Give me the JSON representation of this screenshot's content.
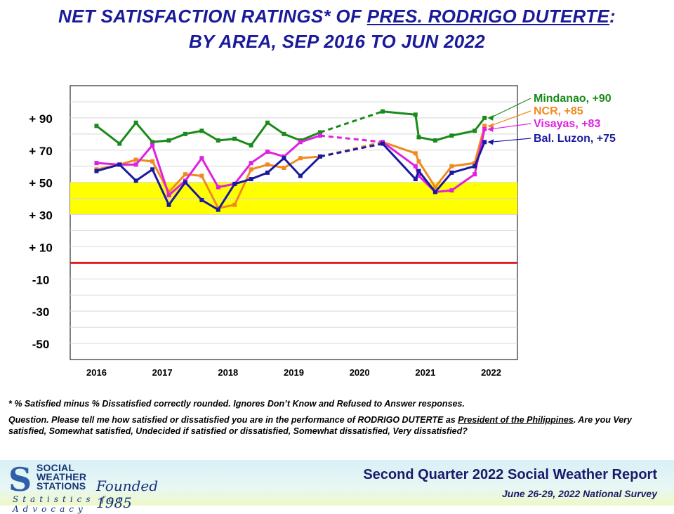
{
  "title": {
    "line1_prefix": "NET SATISFACTION  RATINGS* OF ",
    "line1_underlined": "PRES. RODRIGO DUTERTE",
    "line1_suffix": ":",
    "line2": "BY AREA,  SEP 2016 TO JUN 2022"
  },
  "chart_data": {
    "type": "line",
    "ylim": [
      -60,
      110
    ],
    "yticks": [
      90,
      70,
      50,
      30,
      10,
      -10,
      -30,
      -50
    ],
    "ytick_labels": [
      "+ 90",
      "+ 70",
      "+ 50",
      "+ 30",
      "+ 10",
      "-10",
      "-30",
      "-50"
    ],
    "xlim": [
      2015.6,
      2022.4
    ],
    "xticks": [
      2016,
      2017,
      2018,
      2019,
      2020,
      2021,
      2022
    ],
    "xtick_labels": [
      "2016",
      "2017",
      "2018",
      "2019",
      "2020",
      "2021",
      "2022"
    ],
    "band": {
      "from": 30,
      "to": 50,
      "color": "#ffff00"
    },
    "zero_line": {
      "value": 0,
      "color": "#e02020"
    },
    "dashed_segments": [
      [
        2019.4,
        2020.35
      ]
    ],
    "series": [
      {
        "name": "Mindanao",
        "end_label": "Mindanao, +90",
        "color": "#1a8a1a",
        "x": [
          2016.0,
          2016.35,
          2016.6,
          2016.85,
          2017.1,
          2017.35,
          2017.6,
          2017.85,
          2018.1,
          2018.35,
          2018.6,
          2018.85,
          2019.1,
          2019.4,
          2020.35,
          2020.85,
          2020.9,
          2021.15,
          2021.4,
          2021.75,
          2021.9
        ],
        "y": [
          85,
          74,
          87,
          75,
          76,
          80,
          82,
          76,
          77,
          73,
          87,
          80,
          76,
          81,
          94,
          92,
          78,
          76,
          79,
          82,
          90
        ]
      },
      {
        "name": "NCR",
        "end_label": "NCR, +85",
        "color": "#f08a20",
        "x": [
          2016.0,
          2016.35,
          2016.6,
          2016.85,
          2017.1,
          2017.35,
          2017.6,
          2017.85,
          2018.1,
          2018.35,
          2018.6,
          2018.85,
          2019.1,
          2019.4,
          2020.35,
          2020.85,
          2020.9,
          2021.15,
          2021.4,
          2021.75,
          2021.9
        ],
        "y": [
          58,
          61,
          64,
          63,
          44,
          55,
          54,
          34,
          36,
          58,
          61,
          59,
          65,
          66,
          75,
          68,
          63,
          47,
          60,
          62,
          85
        ]
      },
      {
        "name": "Visayas",
        "end_label": "Visayas, +83",
        "color": "#e020e0",
        "x": [
          2016.0,
          2016.35,
          2016.6,
          2016.85,
          2017.1,
          2017.35,
          2017.6,
          2017.85,
          2018.1,
          2018.35,
          2018.6,
          2018.85,
          2019.1,
          2019.4,
          2020.35,
          2020.85,
          2020.9,
          2021.15,
          2021.4,
          2021.75,
          2021.9
        ],
        "y": [
          62,
          61,
          61,
          73,
          42,
          51,
          65,
          47,
          49,
          62,
          69,
          66,
          75,
          79,
          75,
          60,
          54,
          44,
          45,
          55,
          83
        ]
      },
      {
        "name": "Bal. Luzon",
        "end_label": "Bal. Luzon, +75",
        "color": "#1a1aa0",
        "x": [
          2016.0,
          2016.35,
          2016.6,
          2016.85,
          2017.1,
          2017.35,
          2017.6,
          2017.85,
          2018.1,
          2018.35,
          2018.6,
          2018.85,
          2019.1,
          2019.4,
          2020.35,
          2020.85,
          2020.9,
          2021.15,
          2021.4,
          2021.75,
          2021.9
        ],
        "y": [
          57,
          61,
          51,
          58,
          36,
          50,
          39,
          33,
          49,
          52,
          56,
          65,
          54,
          66,
          74,
          52,
          57,
          44,
          56,
          60,
          75
        ]
      }
    ]
  },
  "notes": {
    "footnote": "* % Satisfied  minus  % Dissatisfied  correctly  rounded.  Ignores  Don’t Know  and  Refused  to  Answer  responses.",
    "question_prefix": "Question.  Please  tell  me  how  satisfied   or  dissatisfied   you  are  in  the  performance  of  RODRIGO  DUTERTE  as ",
    "question_underlined": "President  of  the  Philippines",
    "question_suffix": ".  Are  you  Very  satisfied,  Somewhat  satisfied,  Undecided  if  satisfied  or  dissatisfied, Somewhat  dissatisfied,  Very  dissatisfied?"
  },
  "footer": {
    "logo_line1": "SOCIAL",
    "logo_line2": "WEATHER",
    "logo_line3": "STATIONS",
    "founded": "Founded 1985",
    "tagline": "Statistics for Advocacy",
    "report_title": "Second Quarter 2022 Social Weather Report",
    "report_subtitle": "June 26-29, 2022 National Survey"
  }
}
